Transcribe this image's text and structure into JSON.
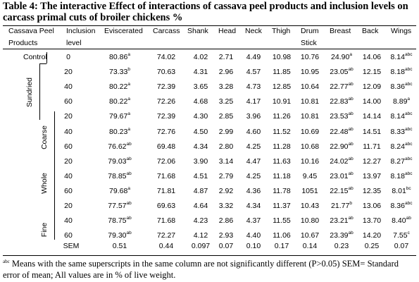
{
  "title": "Table 4: The interactive Effect of interactions of cassava peel products and inclusion levels on carcass primal cuts of broiler chickens %",
  "header": {
    "line1": [
      "Cassava Peel",
      "Inclusion",
      "Eviscerated",
      "Carcass",
      "Shank",
      "Head",
      "Neck",
      "Thigh",
      "Drum",
      "Breast",
      "Back",
      "Wings"
    ],
    "line2": [
      "Products",
      "level",
      "",
      "",
      "",
      "",
      "",
      "",
      "Stick",
      "",
      "",
      ""
    ]
  },
  "groups": [
    {
      "label": "Control",
      "orientation": "horizontal"
    },
    {
      "label": "Sundried",
      "orientation": "vertical"
    },
    {
      "label": "Coarse",
      "orientation": "vertical"
    },
    {
      "label": "Whole",
      "orientation": "vertical"
    },
    {
      "label": "Fine",
      "orientation": "vertical"
    }
  ],
  "rows": [
    {
      "level": "0",
      "values": [
        [
          "80.86",
          "a"
        ],
        [
          "74.02",
          ""
        ],
        [
          "4.02",
          ""
        ],
        [
          "2.71",
          ""
        ],
        [
          "4.49",
          ""
        ],
        [
          "10.98",
          ""
        ],
        [
          "10.76",
          ""
        ],
        [
          "24.90",
          "a"
        ],
        [
          "14.06",
          ""
        ],
        [
          "8.14",
          "abc"
        ]
      ]
    },
    {
      "level": "20",
      "values": [
        [
          "73.33",
          "b"
        ],
        [
          "70.63",
          ""
        ],
        [
          "4.31",
          ""
        ],
        [
          "2.96",
          ""
        ],
        [
          "4.57",
          ""
        ],
        [
          "11.85",
          ""
        ],
        [
          "10.95",
          ""
        ],
        [
          "23.05",
          "ab"
        ],
        [
          "12.15",
          ""
        ],
        [
          "8.18",
          "abc"
        ]
      ]
    },
    {
      "level": "40",
      "values": [
        [
          "80.22",
          "a"
        ],
        [
          "72.39",
          ""
        ],
        [
          "3.65",
          ""
        ],
        [
          "3.28",
          ""
        ],
        [
          "4.73",
          ""
        ],
        [
          "12.85",
          ""
        ],
        [
          "10.64",
          ""
        ],
        [
          "22.77",
          "ab"
        ],
        [
          "12.09",
          ""
        ],
        [
          "8.36",
          "abc"
        ]
      ]
    },
    {
      "level": "60",
      "values": [
        [
          "80.22",
          "a"
        ],
        [
          "72.26",
          ""
        ],
        [
          "4.68",
          ""
        ],
        [
          "3.25",
          ""
        ],
        [
          "4.17",
          ""
        ],
        [
          "10.91",
          ""
        ],
        [
          "10.81",
          ""
        ],
        [
          "22.83",
          "ab"
        ],
        [
          "14.00",
          ""
        ],
        [
          "8.89",
          "a"
        ]
      ]
    },
    {
      "level": "20",
      "values": [
        [
          "79.67",
          "a"
        ],
        [
          "72.39",
          ""
        ],
        [
          "4.30",
          ""
        ],
        [
          "2.85",
          ""
        ],
        [
          "3.96",
          ""
        ],
        [
          "11.26",
          ""
        ],
        [
          "10.81",
          ""
        ],
        [
          "23.53",
          "ab"
        ],
        [
          "14.14",
          ""
        ],
        [
          "8.14",
          "abc"
        ]
      ]
    },
    {
      "level": "40",
      "values": [
        [
          "80.23",
          "a"
        ],
        [
          "72.76",
          ""
        ],
        [
          "4.50",
          ""
        ],
        [
          "2.99",
          ""
        ],
        [
          "4.60",
          ""
        ],
        [
          "11.52",
          ""
        ],
        [
          "10.69",
          ""
        ],
        [
          "22.48",
          "ab"
        ],
        [
          "14.51",
          ""
        ],
        [
          "8.33",
          "abc"
        ]
      ]
    },
    {
      "level": "60",
      "values": [
        [
          "76.62",
          "ab"
        ],
        [
          "69.48",
          ""
        ],
        [
          "4.34",
          ""
        ],
        [
          "2.80",
          ""
        ],
        [
          "4.25",
          ""
        ],
        [
          "11.28",
          ""
        ],
        [
          "10.68",
          ""
        ],
        [
          "22.90",
          "ab"
        ],
        [
          "11.71",
          ""
        ],
        [
          "8.24",
          "abc"
        ]
      ]
    },
    {
      "level": "20",
      "values": [
        [
          "79.03",
          "ab"
        ],
        [
          "72.06",
          ""
        ],
        [
          "3.90",
          ""
        ],
        [
          "3.14",
          ""
        ],
        [
          "4.47",
          ""
        ],
        [
          "11.63",
          ""
        ],
        [
          "10.16",
          ""
        ],
        [
          "24.02",
          "ab"
        ],
        [
          "12.27",
          ""
        ],
        [
          "8.27",
          "abc"
        ]
      ]
    },
    {
      "level": "40",
      "values": [
        [
          "78.85",
          "ab"
        ],
        [
          "71.68",
          ""
        ],
        [
          "4.51",
          ""
        ],
        [
          "2.79",
          ""
        ],
        [
          "4.25",
          ""
        ],
        [
          "11.18",
          ""
        ],
        [
          "9.45",
          ""
        ],
        [
          "23.01",
          "ab"
        ],
        [
          "13.97",
          ""
        ],
        [
          "8.18",
          "abc"
        ]
      ]
    },
    {
      "level": "60",
      "values": [
        [
          "79.68",
          "a"
        ],
        [
          "71.81",
          ""
        ],
        [
          "4.87",
          ""
        ],
        [
          "2.92",
          ""
        ],
        [
          "4.36",
          ""
        ],
        [
          "11.78",
          ""
        ],
        [
          "1051",
          ""
        ],
        [
          "22.15",
          "ab"
        ],
        [
          "12.35",
          ""
        ],
        [
          "8.01",
          "bc"
        ]
      ]
    },
    {
      "level": "20",
      "values": [
        [
          "77.57",
          "ab"
        ],
        [
          "69.63",
          ""
        ],
        [
          "4.64",
          ""
        ],
        [
          "3.32",
          ""
        ],
        [
          "4.34",
          ""
        ],
        [
          "11.37",
          ""
        ],
        [
          "10.43",
          ""
        ],
        [
          "21.77",
          "b"
        ],
        [
          "13.06",
          ""
        ],
        [
          "8.36",
          "abc"
        ]
      ]
    },
    {
      "level": "40",
      "values": [
        [
          "78.75",
          "ab"
        ],
        [
          "71.68",
          ""
        ],
        [
          "4.23",
          ""
        ],
        [
          "2.86",
          ""
        ],
        [
          "4.37",
          ""
        ],
        [
          "11.55",
          ""
        ],
        [
          "10.80",
          ""
        ],
        [
          "23.21",
          "ab"
        ],
        [
          "13.70",
          ""
        ],
        [
          "8.40",
          "ab"
        ]
      ]
    },
    {
      "level": "60",
      "values": [
        [
          "79.30",
          "ab"
        ],
        [
          "72.27",
          ""
        ],
        [
          "4.12",
          ""
        ],
        [
          "2.93",
          ""
        ],
        [
          "4.40",
          ""
        ],
        [
          "11.06",
          ""
        ],
        [
          "10.67",
          ""
        ],
        [
          "23.39",
          "ab"
        ],
        [
          "14.20",
          ""
        ],
        [
          "7.55",
          "c"
        ]
      ]
    }
  ],
  "sem": {
    "label": "SEM",
    "values": [
      "0.51",
      "0.44",
      "0.097",
      "0.07",
      "0.10",
      "0.17",
      "0.14",
      "0.23",
      "0.25",
      "0.07"
    ]
  },
  "footnote": {
    "sup": "abc",
    "text": " Means with the same superscripts in the same column are not significantly different (P>0.05) SEM= Standard error of mean; All values are in % of live weight."
  }
}
